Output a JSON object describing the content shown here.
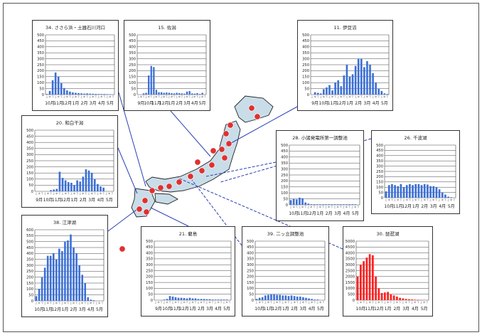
{
  "chart_data": [
    {
      "type": "bar",
      "title": "34. ささら浜・土器石川河口",
      "ylim": [
        0,
        500
      ],
      "yticks": [
        0,
        50,
        100,
        150,
        200,
        250,
        300,
        350,
        400,
        450,
        500
      ],
      "xlabels": [
        "10月",
        "11月",
        "12月",
        "1月",
        "2月",
        "3月",
        "4月",
        "5月"
      ],
      "sublabels": [
        "上",
        "中",
        "下"
      ],
      "values": [
        5,
        30,
        120,
        185,
        150,
        95,
        55,
        35,
        25,
        18,
        15,
        12,
        10,
        8,
        10,
        8,
        7,
        6,
        5,
        5,
        5,
        4,
        3,
        2
      ],
      "color": "#3b6fd6"
    },
    {
      "type": "bar",
      "title": "15. 佐潟",
      "ylim": [
        0,
        500
      ],
      "yticks": [
        0,
        50,
        100,
        150,
        200,
        250,
        300,
        350,
        400,
        450,
        500
      ],
      "xlabels": [
        "9月",
        "10月",
        "11月",
        "12月",
        "1月",
        "2月",
        "3月",
        "4月",
        "5月"
      ],
      "sublabels": [
        "上",
        "中",
        "下"
      ],
      "values": [
        0,
        0,
        10,
        15,
        160,
        240,
        230,
        40,
        20,
        20,
        15,
        18,
        15,
        12,
        10,
        15,
        12,
        10,
        8,
        25,
        30,
        10,
        8,
        12,
        5,
        15,
        0
      ],
      "color": "#3b6fd6"
    },
    {
      "type": "bar",
      "title": "11. 伊豆沼",
      "ylim": [
        0,
        500
      ],
      "yticks": [
        0,
        50,
        100,
        150,
        200,
        250,
        300,
        350,
        400,
        450,
        500
      ],
      "xlabels": [
        "9月",
        "10月",
        "11月",
        "12月",
        "1月",
        "2月",
        "3月",
        "4月",
        "5月"
      ],
      "sublabels": [
        "上",
        "中",
        "下"
      ],
      "values": [
        0,
        20,
        15,
        10,
        45,
        60,
        80,
        35,
        100,
        120,
        70,
        160,
        250,
        150,
        170,
        240,
        300,
        300,
        230,
        280,
        250,
        180,
        100,
        50,
        30,
        10,
        5
      ],
      "color": "#3b6fd6"
    },
    {
      "type": "bar",
      "title": "20. 和白干潟",
      "ylim": [
        0,
        500
      ],
      "yticks": [
        0,
        50,
        100,
        150,
        200,
        250,
        300,
        350,
        400,
        450,
        500
      ],
      "xlabels": [
        "9月",
        "10月",
        "11月",
        "12月",
        "1月",
        "2月",
        "3月",
        "4月",
        "5月"
      ],
      "sublabels": [
        "上",
        "中",
        "下"
      ],
      "values": [
        0,
        0,
        0,
        0,
        0,
        10,
        15,
        20,
        160,
        110,
        90,
        75,
        70,
        50,
        90,
        80,
        120,
        180,
        170,
        150,
        100,
        60,
        40,
        30,
        0,
        0,
        0
      ],
      "color": "#3b6fd6"
    },
    {
      "type": "bar",
      "title": "28. 小諸発電所第一調整池",
      "ylim": [
        0,
        500
      ],
      "yticks": [
        0,
        50,
        100,
        150,
        200,
        250,
        300,
        350,
        400,
        450,
        500
      ],
      "xlabels": [
        "10月",
        "11月",
        "12月",
        "1月",
        "2月",
        "3月",
        "4月",
        "5月"
      ],
      "sublabels": [
        "上",
        "中",
        "下"
      ],
      "values": [
        40,
        50,
        45,
        60,
        55,
        20,
        10,
        5,
        5,
        5,
        5,
        5,
        5,
        5,
        5,
        5,
        5,
        5,
        5,
        5,
        5,
        5,
        5,
        0
      ],
      "color": "#3b6fd6"
    },
    {
      "type": "bar",
      "title": "26. 千波湖",
      "ylim": [
        0,
        500
      ],
      "yticks": [
        0,
        50,
        100,
        150,
        200,
        250,
        300,
        350,
        400,
        450,
        500
      ],
      "xlabels": [
        "10月",
        "11月",
        "12月",
        "1月",
        "2月",
        "3月",
        "4月",
        "5月"
      ],
      "sublabels": [
        "上",
        "中",
        "下"
      ],
      "values": [
        60,
        120,
        130,
        120,
        110,
        130,
        100,
        120,
        130,
        120,
        130,
        130,
        120,
        130,
        125,
        110,
        110,
        100,
        80,
        50,
        30,
        10,
        5,
        0
      ],
      "color": "#3b6fd6"
    },
    {
      "type": "bar",
      "title": "38. 江津湖",
      "ylim": [
        0,
        600
      ],
      "yticks": [
        0,
        50,
        100,
        150,
        200,
        250,
        300,
        350,
        400,
        450,
        500,
        550,
        600
      ],
      "xlabels": [
        "10月",
        "11月",
        "12月",
        "1月",
        "2月",
        "3月",
        "4月",
        "5月"
      ],
      "sublabels": [
        "上",
        "中",
        "下"
      ],
      "values": [
        40,
        100,
        200,
        280,
        380,
        380,
        400,
        350,
        440,
        420,
        500,
        510,
        560,
        450,
        400,
        300,
        220,
        150,
        30,
        10,
        5,
        0,
        0,
        0
      ],
      "color": "#3b6fd6"
    },
    {
      "type": "bar",
      "title": "21. 藺島",
      "ylim": [
        0,
        500
      ],
      "yticks": [
        0,
        50,
        100,
        150,
        200,
        250,
        300,
        350,
        400,
        450,
        500
      ],
      "xlabels": [
        "9月",
        "10月",
        "11月",
        "12月",
        "1月",
        "2月",
        "3月",
        "4月",
        "5月"
      ],
      "sublabels": [
        "上",
        "中",
        "下"
      ],
      "values": [
        0,
        0,
        0,
        5,
        10,
        35,
        30,
        25,
        20,
        20,
        18,
        15,
        20,
        15,
        15,
        10,
        10,
        10,
        8,
        8,
        5,
        5,
        5,
        5,
        5,
        5,
        0
      ],
      "color": "#3b6fd6"
    },
    {
      "type": "bar",
      "title": "39. 二ッ立調整池",
      "ylim": [
        0,
        500
      ],
      "yticks": [
        0,
        50,
        100,
        150,
        200,
        250,
        300,
        350,
        400,
        450,
        500
      ],
      "xlabels": [
        "10月",
        "11月",
        "12月",
        "1月",
        "2月",
        "3月",
        "4月",
        "5月"
      ],
      "sublabels": [
        "上",
        "中",
        "下"
      ],
      "values": [
        10,
        20,
        25,
        40,
        45,
        50,
        50,
        45,
        45,
        40,
        40,
        35,
        40,
        35,
        30,
        30,
        25,
        20,
        15,
        10,
        5,
        5,
        0,
        0
      ],
      "color": "#3b6fd6"
    },
    {
      "type": "bar",
      "title": "30. 琵琶湖",
      "ylim": [
        0,
        5000
      ],
      "yticks": [
        0,
        500,
        1000,
        1500,
        2000,
        2500,
        3000,
        3500,
        4000,
        4500,
        5000
      ],
      "xlabels": [
        "10月",
        "11月",
        "12月",
        "1月",
        "2月",
        "3月",
        "4月",
        "5月"
      ],
      "sublabels": [
        "上",
        "中",
        "下"
      ],
      "values": [
        2000,
        3000,
        3300,
        3600,
        3900,
        3800,
        2000,
        1000,
        600,
        650,
        700,
        500,
        400,
        300,
        200,
        150,
        100,
        80,
        60,
        40,
        30,
        20,
        10,
        0
      ],
      "color": "#ff2020",
      "tickcolor": "#ff2020"
    }
  ]
}
